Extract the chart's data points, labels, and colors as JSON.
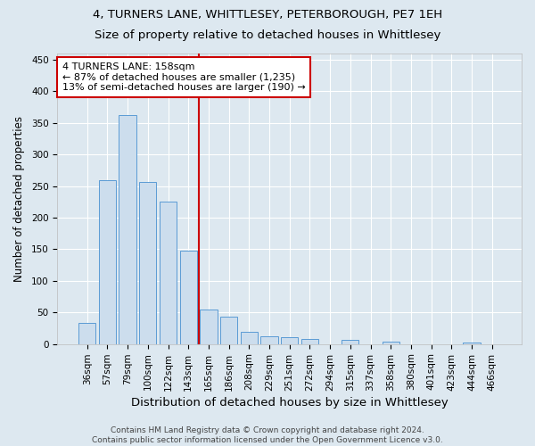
{
  "title1": "4, TURNERS LANE, WHITTLESEY, PETERBOROUGH, PE7 1EH",
  "title2": "Size of property relative to detached houses in Whittlesey",
  "xlabel": "Distribution of detached houses by size in Whittlesey",
  "ylabel": "Number of detached properties",
  "categories": [
    "36sqm",
    "57sqm",
    "79sqm",
    "100sqm",
    "122sqm",
    "143sqm",
    "165sqm",
    "186sqm",
    "208sqm",
    "229sqm",
    "251sqm",
    "272sqm",
    "294sqm",
    "315sqm",
    "337sqm",
    "358sqm",
    "380sqm",
    "401sqm",
    "423sqm",
    "444sqm",
    "466sqm"
  ],
  "values": [
    33,
    260,
    362,
    257,
    225,
    148,
    55,
    44,
    19,
    12,
    11,
    8,
    0,
    6,
    0,
    4,
    0,
    0,
    0,
    3,
    0
  ],
  "bar_color": "#ccdded",
  "bar_edge_color": "#5b9bd5",
  "vline_index": 5.5,
  "reference_line_label": "4 TURNERS LANE: 158sqm",
  "annotation_line1": "← 87% of detached houses are smaller (1,235)",
  "annotation_line2": "13% of semi-detached houses are larger (190) →",
  "annotation_box_color": "white",
  "annotation_box_edge_color": "#cc0000",
  "vline_color": "#cc0000",
  "ylim": [
    0,
    460
  ],
  "yticks": [
    0,
    50,
    100,
    150,
    200,
    250,
    300,
    350,
    400,
    450
  ],
  "footer1": "Contains HM Land Registry data © Crown copyright and database right 2024.",
  "footer2": "Contains public sector information licensed under the Open Government Licence v3.0.",
  "bg_color": "#dde8f0",
  "plot_bg_color": "#dde8f0",
  "title1_fontsize": 9.5,
  "title2_fontsize": 9.5,
  "xlabel_fontsize": 9.5,
  "ylabel_fontsize": 8.5,
  "tick_fontsize": 7.5,
  "footer_fontsize": 6.5,
  "annotation_fontsize": 8.0
}
